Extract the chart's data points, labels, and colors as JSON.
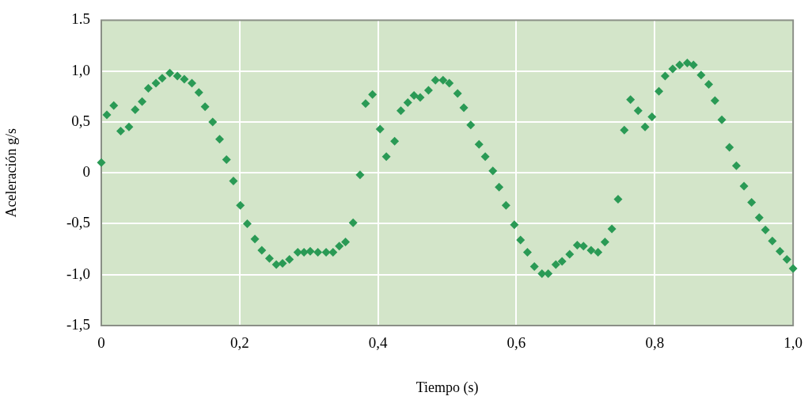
{
  "chart_data": {
    "type": "scatter",
    "xlabel": "Tiempo (s)",
    "ylabel": "Aceleración g/s",
    "marker": "diamond",
    "grid": true,
    "legend": false,
    "xlim": [
      0,
      1
    ],
    "ylim": [
      -1.5,
      1.5
    ],
    "xticks": [
      0,
      {
        "value": 0.2,
        "label": "0,2"
      },
      {
        "value": 0.4,
        "label": "0,4"
      },
      {
        "value": 0.6,
        "label": "0,6"
      },
      {
        "value": 0.8,
        "label": "0,8"
      },
      {
        "value": 1,
        "label": "1,0"
      }
    ],
    "yticks": [
      {
        "value": -1.5,
        "label": "-1,5"
      },
      {
        "value": -1,
        "label": "-1,0"
      },
      {
        "value": -0.5,
        "label": "-0,5"
      },
      0,
      {
        "value": 0.5,
        "label": "0,5"
      },
      {
        "value": 1,
        "label": "1,0"
      },
      1.5
    ],
    "series": [
      {
        "color": "#2a9a55",
        "x": [
          0,
          0.008,
          0.018,
          0.028,
          0.04,
          0.049,
          0.059,
          0.068,
          0.079,
          0.088,
          0.099,
          0.11,
          0.12,
          0.131,
          0.141,
          0.15,
          0.161,
          0.171,
          0.181,
          0.191,
          0.201,
          0.211,
          0.222,
          0.232,
          0.243,
          0.253,
          0.262,
          0.272,
          0.284,
          0.293,
          0.302,
          0.313,
          0.325,
          0.335,
          0.344,
          0.353,
          0.364,
          0.374,
          0.382,
          0.392,
          0.403,
          0.412,
          0.424,
          0.433,
          0.443,
          0.452,
          0.461,
          0.473,
          0.483,
          0.494,
          0.503,
          0.515,
          0.524,
          0.534,
          0.546,
          0.555,
          0.566,
          0.575,
          0.585,
          0.597,
          0.606,
          0.616,
          0.626,
          0.637,
          0.646,
          0.657,
          0.666,
          0.677,
          0.688,
          0.697,
          0.708,
          0.718,
          0.728,
          0.738,
          0.747,
          0.756,
          0.765,
          0.776,
          0.786,
          0.796,
          0.806,
          0.815,
          0.826,
          0.836,
          0.847,
          0.856,
          0.867,
          0.878,
          0.887,
          0.897,
          0.908,
          0.918,
          0.929,
          0.94,
          0.951,
          0.96,
          0.97,
          0.981,
          0.991,
          1
        ],
        "values": [
          0.1,
          0.57,
          0.66,
          0.41,
          0.45,
          0.62,
          0.7,
          0.83,
          0.88,
          0.93,
          0.98,
          0.95,
          0.92,
          0.88,
          0.79,
          0.65,
          0.5,
          0.33,
          0.13,
          -0.08,
          -0.32,
          -0.5,
          -0.65,
          -0.76,
          -0.84,
          -0.9,
          -0.89,
          -0.85,
          -0.78,
          -0.78,
          -0.77,
          -0.78,
          -0.78,
          -0.78,
          -0.72,
          -0.68,
          -0.49,
          -0.02,
          0.68,
          0.77,
          0.43,
          0.16,
          0.31,
          0.61,
          0.69,
          0.76,
          0.74,
          0.81,
          0.91,
          0.91,
          0.88,
          0.78,
          0.64,
          0.47,
          0.28,
          0.16,
          0.02,
          -0.14,
          -0.32,
          -0.51,
          -0.66,
          -0.78,
          -0.92,
          -0.99,
          -0.99,
          -0.9,
          -0.87,
          -0.8,
          -0.71,
          -0.72,
          -0.76,
          -0.78,
          -0.68,
          -0.55,
          -0.26,
          0.42,
          0.72,
          0.61,
          0.45,
          0.55,
          0.8,
          0.95,
          1.02,
          1.06,
          1.08,
          1.06,
          0.96,
          0.87,
          0.71,
          0.52,
          0.25,
          0.07,
          -0.13,
          -0.29,
          -0.44,
          -0.56,
          -0.67,
          -0.77,
          -0.85,
          -0.94
        ]
      }
    ]
  }
}
